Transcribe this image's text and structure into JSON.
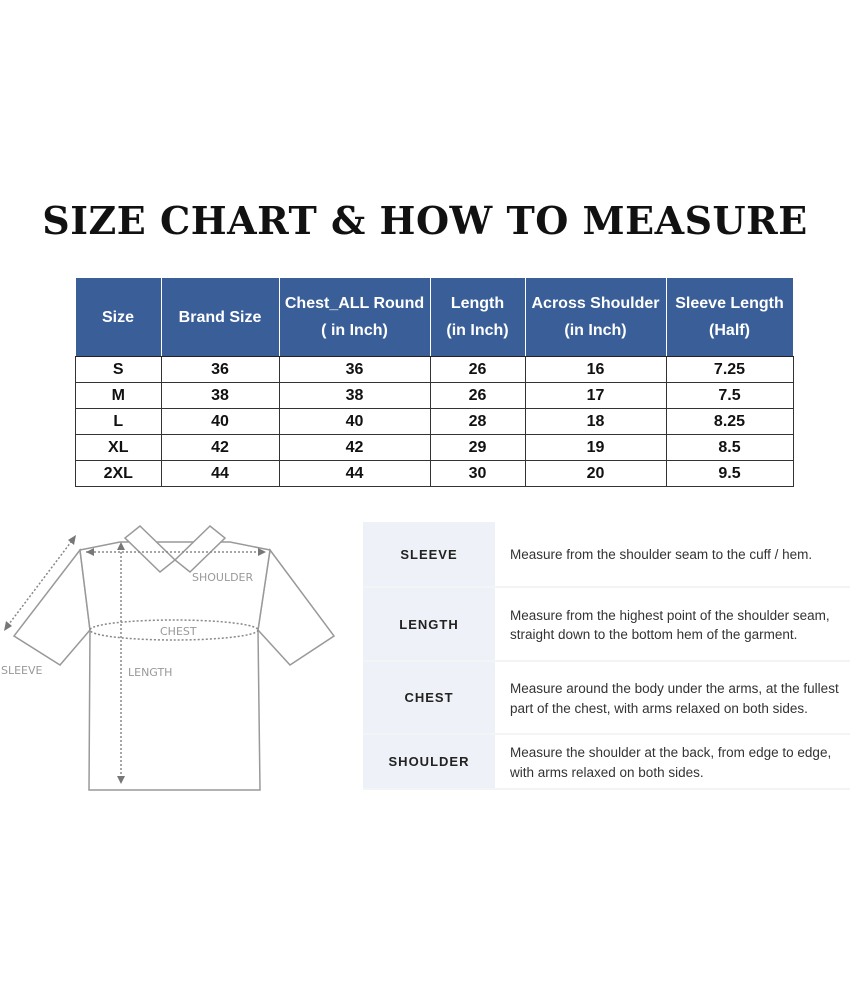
{
  "title": "SIZE CHART & HOW TO MEASURE",
  "size_table": {
    "headers": [
      [
        "Size"
      ],
      [
        "Brand Size"
      ],
      [
        "Chest_ALL Round",
        "( in Inch)"
      ],
      [
        "Length",
        "(in Inch)"
      ],
      [
        "Across Shoulder",
        "(in Inch)"
      ],
      [
        "Sleeve Length",
        "(Half)"
      ]
    ],
    "rows": [
      [
        "S",
        "36",
        "36",
        "26",
        "16",
        "7.25"
      ],
      [
        "M",
        "38",
        "38",
        "26",
        "17",
        "7.5"
      ],
      [
        "L",
        "40",
        "40",
        "28",
        "18",
        "8.25"
      ],
      [
        "XL",
        "42",
        "42",
        "29",
        "19",
        "8.5"
      ],
      [
        "2XL",
        "44",
        "44",
        "30",
        "20",
        "9.5"
      ]
    ],
    "header_color": "#3a5f98"
  },
  "diagram": {
    "labels": {
      "shoulder": "SHOULDER",
      "chest": "CHEST",
      "sleeve": "SLEEVE",
      "length": "LENGTH"
    }
  },
  "measure_guide": [
    {
      "label": "SLEEVE",
      "text": "Measure from the shoulder seam to the cuff / hem."
    },
    {
      "label": "LENGTH",
      "text": "Measure from the highest point of the shoulder seam, straight down to the bottom hem of the garment."
    },
    {
      "label": "CHEST",
      "text": "Measure around the body under the arms, at the fullest part of the chest, with arms relaxed on both sides."
    },
    {
      "label": "SHOULDER",
      "text": "Measure the shoulder at the back, from edge to edge, with arms relaxed on both sides."
    }
  ]
}
